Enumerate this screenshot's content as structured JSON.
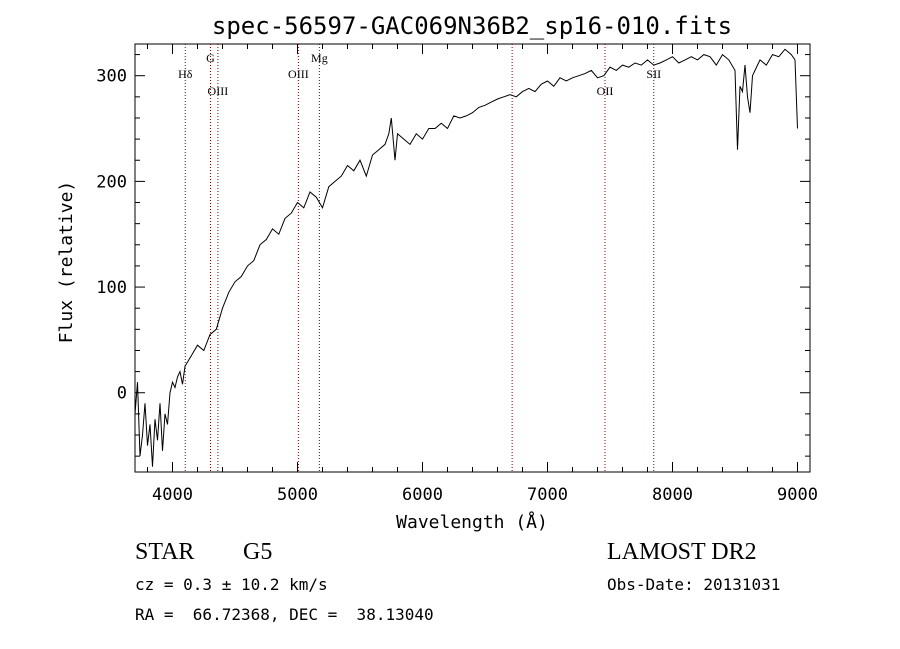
{
  "chart_data": {
    "type": "line",
    "title": "spec-56597-GAC069N36B2_sp16-010.fits",
    "xlabel": "Wavelength (Å)",
    "ylabel": "Flux (relative)",
    "xlim": [
      3700,
      9100
    ],
    "ylim": [
      -75,
      330
    ],
    "xticks": [
      4000,
      5000,
      6000,
      7000,
      8000,
      9000
    ],
    "yticks": [
      0,
      100,
      200,
      300
    ],
    "line_color": "#000000",
    "marker_color": "#8b0000",
    "grid": false,
    "series": [
      {
        "x": [
          3700,
          3720,
          3740,
          3760,
          3780,
          3800,
          3820,
          3840,
          3860,
          3880,
          3900,
          3920,
          3940,
          3960,
          3980,
          4000,
          4020,
          4040,
          4060,
          4080,
          4100,
          4150,
          4200,
          4250,
          4300,
          4350,
          4400,
          4450,
          4500,
          4550,
          4600,
          4650,
          4700,
          4750,
          4800,
          4850,
          4900,
          4950,
          5000,
          5050,
          5100,
          5150,
          5200,
          5250,
          5300,
          5350,
          5400,
          5450,
          5500,
          5550,
          5600,
          5650,
          5700,
          5730,
          5750,
          5780,
          5800,
          5850,
          5900,
          5950,
          6000,
          6050,
          6100,
          6150,
          6200,
          6250,
          6300,
          6350,
          6400,
          6450,
          6500,
          6550,
          6600,
          6650,
          6700,
          6750,
          6800,
          6850,
          6900,
          6950,
          7000,
          7050,
          7100,
          7150,
          7200,
          7250,
          7300,
          7350,
          7400,
          7450,
          7500,
          7550,
          7600,
          7650,
          7700,
          7750,
          7800,
          7850,
          7900,
          7950,
          8000,
          8050,
          8100,
          8150,
          8200,
          8250,
          8300,
          8350,
          8400,
          8450,
          8500,
          8520,
          8540,
          8560,
          8580,
          8600,
          8620,
          8640,
          8660,
          8680,
          8700,
          8750,
          8800,
          8850,
          8900,
          8950,
          8980,
          9000
        ],
        "y": [
          -20,
          10,
          -60,
          -40,
          -10,
          -50,
          -30,
          -70,
          -25,
          -45,
          -10,
          -55,
          -20,
          -30,
          0,
          10,
          5,
          15,
          20,
          8,
          25,
          35,
          45,
          40,
          55,
          60,
          80,
          95,
          105,
          110,
          120,
          125,
          140,
          145,
          155,
          150,
          165,
          170,
          180,
          175,
          190,
          185,
          175,
          195,
          200,
          205,
          215,
          210,
          220,
          205,
          225,
          230,
          235,
          245,
          260,
          220,
          245,
          240,
          235,
          245,
          240,
          250,
          250,
          255,
          250,
          262,
          260,
          262,
          265,
          270,
          272,
          275,
          278,
          280,
          282,
          280,
          285,
          288,
          285,
          292,
          295,
          290,
          298,
          295,
          298,
          300,
          302,
          305,
          298,
          300,
          308,
          305,
          310,
          308,
          312,
          310,
          315,
          310,
          312,
          315,
          318,
          312,
          315,
          318,
          315,
          320,
          318,
          310,
          320,
          315,
          305,
          230,
          290,
          285,
          310,
          280,
          265,
          300,
          305,
          310,
          315,
          310,
          320,
          318,
          325,
          320,
          315,
          250
        ]
      }
    ],
    "line_markers": [
      {
        "label": "Hδ",
        "x": 4102,
        "pos": "upper"
      },
      {
        "label": "G",
        "x": 4304,
        "pos": "top"
      },
      {
        "label": "OIII",
        "x": 4363,
        "pos": "lower"
      },
      {
        "label": "OIII",
        "x": 5007,
        "pos": "upper"
      },
      {
        "label": "Mg",
        "x": 5175,
        "pos": "top"
      },
      {
        "label": "",
        "x": 6717,
        "pos": "none"
      },
      {
        "label": "OII",
        "x": 7460,
        "pos": "lower"
      },
      {
        "label": "SII",
        "x": 7850,
        "pos": "upper"
      }
    ]
  },
  "footer": {
    "object_class": "STAR",
    "subclass": "G5",
    "survey": "LAMOST DR2",
    "cz": "cz = 0.3 ± 10.2 km/s",
    "obs_date": "Obs-Date: 20131031",
    "coords": "RA =  66.72368, DEC =  38.13040"
  }
}
